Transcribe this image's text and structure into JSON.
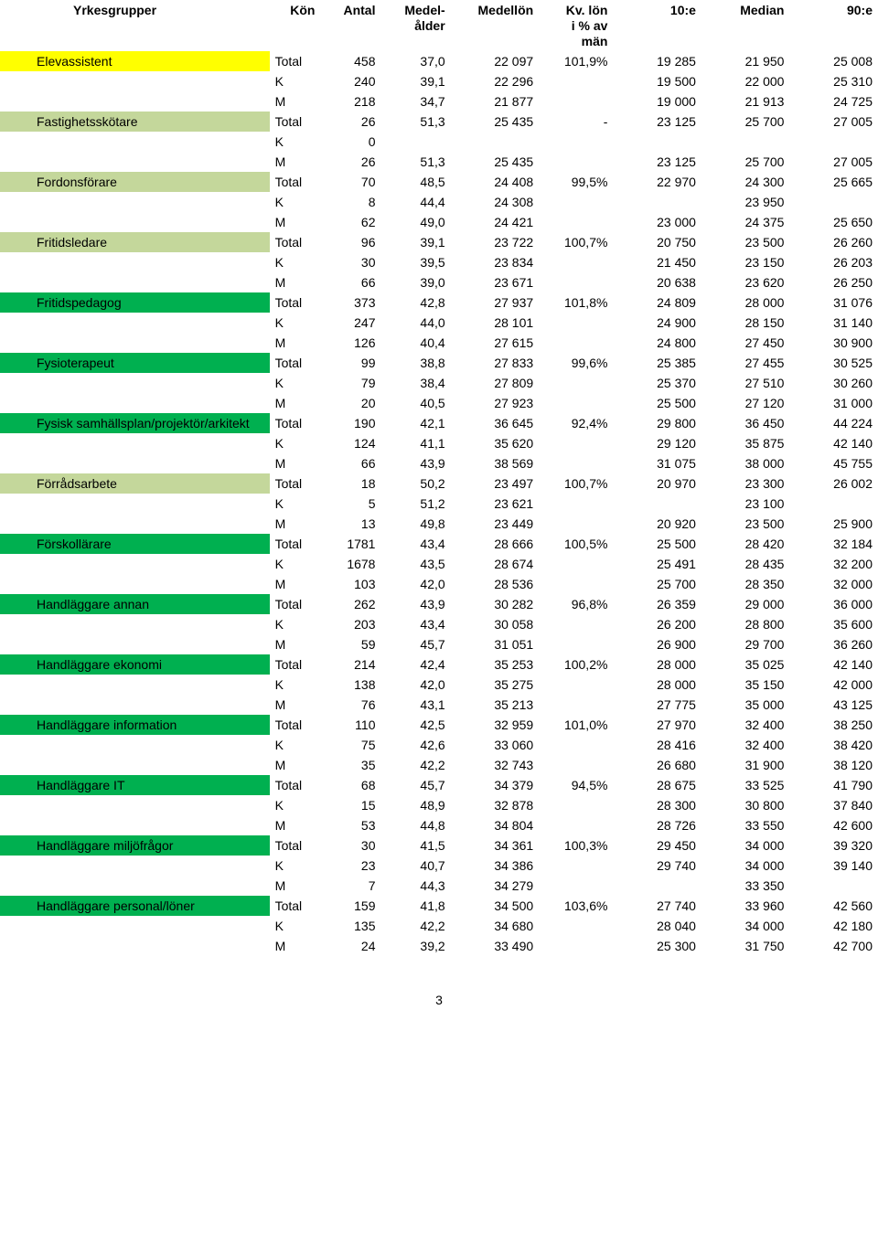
{
  "colors": {
    "yellow": "#ffff00",
    "olive": "#c4d79b",
    "green": "#00b050",
    "bg": "#ffffff",
    "text": "#000000"
  },
  "typography": {
    "body_fontsize": 14,
    "header_fontweight": "bold"
  },
  "page_number": "3",
  "headers": {
    "yrkesgrupper": "Yrkesgrupper",
    "kon": "Kön",
    "antal": "Antal",
    "medelalder": "Medel-\nålder",
    "medellon": "Medellön",
    "kvlon": "Kv. lön\ni % av\nmän",
    "p10": "10:e",
    "median": "Median",
    "p90": "90:e"
  },
  "groups": [
    {
      "name": "Elevassistent",
      "color": "yellow",
      "rows": [
        [
          "Total",
          "458",
          "37,0",
          "22 097",
          "101,9%",
          "19 285",
          "21 950",
          "25 008"
        ],
        [
          "K",
          "240",
          "39,1",
          "22 296",
          "",
          "19 500",
          "22 000",
          "25 310"
        ],
        [
          "M",
          "218",
          "34,7",
          "21 877",
          "",
          "19 000",
          "21 913",
          "24 725"
        ]
      ]
    },
    {
      "name": "Fastighetsskötare",
      "color": "olive",
      "rows": [
        [
          "Total",
          "26",
          "51,3",
          "25 435",
          "-",
          "23 125",
          "25 700",
          "27 005"
        ],
        [
          "K",
          "0",
          "",
          "",
          "",
          "",
          "",
          ""
        ],
        [
          "M",
          "26",
          "51,3",
          "25 435",
          "",
          "23 125",
          "25 700",
          "27 005"
        ]
      ]
    },
    {
      "name": "Fordonsförare",
      "color": "olive",
      "rows": [
        [
          "Total",
          "70",
          "48,5",
          "24 408",
          "99,5%",
          "22 970",
          "24 300",
          "25 665"
        ],
        [
          "K",
          "8",
          "44,4",
          "24 308",
          "",
          "",
          "23 950",
          ""
        ],
        [
          "M",
          "62",
          "49,0",
          "24 421",
          "",
          "23 000",
          "24 375",
          "25 650"
        ]
      ]
    },
    {
      "name": "Fritidsledare",
      "color": "olive",
      "rows": [
        [
          "Total",
          "96",
          "39,1",
          "23 722",
          "100,7%",
          "20 750",
          "23 500",
          "26 260"
        ],
        [
          "K",
          "30",
          "39,5",
          "23 834",
          "",
          "21 450",
          "23 150",
          "26 203"
        ],
        [
          "M",
          "66",
          "39,0",
          "23 671",
          "",
          "20 638",
          "23 620",
          "26 250"
        ]
      ]
    },
    {
      "name": "Fritidspedagog",
      "color": "green",
      "rows": [
        [
          "Total",
          "373",
          "42,8",
          "27 937",
          "101,8%",
          "24 809",
          "28 000",
          "31 076"
        ],
        [
          "K",
          "247",
          "44,0",
          "28 101",
          "",
          "24 900",
          "28 150",
          "31 140"
        ],
        [
          "M",
          "126",
          "40,4",
          "27 615",
          "",
          "24 800",
          "27 450",
          "30 900"
        ]
      ]
    },
    {
      "name": "Fysioterapeut",
      "color": "green",
      "rows": [
        [
          "Total",
          "99",
          "38,8",
          "27 833",
          "99,6%",
          "25 385",
          "27 455",
          "30 525"
        ],
        [
          "K",
          "79",
          "38,4",
          "27 809",
          "",
          "25 370",
          "27 510",
          "30 260"
        ],
        [
          "M",
          "20",
          "40,5",
          "27 923",
          "",
          "25 500",
          "27 120",
          "31 000"
        ]
      ]
    },
    {
      "name": "Fysisk samhällsplan/projektör/arkitekt",
      "color": "green",
      "rows": [
        [
          "Total",
          "190",
          "42,1",
          "36 645",
          "92,4%",
          "29 800",
          "36 450",
          "44 224"
        ],
        [
          "K",
          "124",
          "41,1",
          "35 620",
          "",
          "29 120",
          "35 875",
          "42 140"
        ],
        [
          "M",
          "66",
          "43,9",
          "38 569",
          "",
          "31 075",
          "38 000",
          "45 755"
        ]
      ]
    },
    {
      "name": "Förrådsarbete",
      "color": "olive",
      "rows": [
        [
          "Total",
          "18",
          "50,2",
          "23 497",
          "100,7%",
          "20 970",
          "23 300",
          "26 002"
        ],
        [
          "K",
          "5",
          "51,2",
          "23 621",
          "",
          "",
          "23 100",
          ""
        ],
        [
          "M",
          "13",
          "49,8",
          "23 449",
          "",
          "20 920",
          "23 500",
          "25 900"
        ]
      ]
    },
    {
      "name": "Förskollärare",
      "color": "green",
      "rows": [
        [
          "Total",
          "1781",
          "43,4",
          "28 666",
          "100,5%",
          "25 500",
          "28 420",
          "32 184"
        ],
        [
          "K",
          "1678",
          "43,5",
          "28 674",
          "",
          "25 491",
          "28 435",
          "32 200"
        ],
        [
          "M",
          "103",
          "42,0",
          "28 536",
          "",
          "25 700",
          "28 350",
          "32 000"
        ]
      ]
    },
    {
      "name": "Handläggare annan",
      "color": "green",
      "rows": [
        [
          "Total",
          "262",
          "43,9",
          "30 282",
          "96,8%",
          "26 359",
          "29 000",
          "36 000"
        ],
        [
          "K",
          "203",
          "43,4",
          "30 058",
          "",
          "26 200",
          "28 800",
          "35 600"
        ],
        [
          "M",
          "59",
          "45,7",
          "31 051",
          "",
          "26 900",
          "29 700",
          "36 260"
        ]
      ]
    },
    {
      "name": "Handläggare ekonomi",
      "color": "green",
      "rows": [
        [
          "Total",
          "214",
          "42,4",
          "35 253",
          "100,2%",
          "28 000",
          "35 025",
          "42 140"
        ],
        [
          "K",
          "138",
          "42,0",
          "35 275",
          "",
          "28 000",
          "35 150",
          "42 000"
        ],
        [
          "M",
          "76",
          "43,1",
          "35 213",
          "",
          "27 775",
          "35 000",
          "43 125"
        ]
      ]
    },
    {
      "name": "Handläggare information",
      "color": "green",
      "rows": [
        [
          "Total",
          "110",
          "42,5",
          "32 959",
          "101,0%",
          "27 970",
          "32 400",
          "38 250"
        ],
        [
          "K",
          "75",
          "42,6",
          "33 060",
          "",
          "28 416",
          "32 400",
          "38 420"
        ],
        [
          "M",
          "35",
          "42,2",
          "32 743",
          "",
          "26 680",
          "31 900",
          "38 120"
        ]
      ]
    },
    {
      "name": "Handläggare IT",
      "color": "green",
      "rows": [
        [
          "Total",
          "68",
          "45,7",
          "34 379",
          "94,5%",
          "28 675",
          "33 525",
          "41 790"
        ],
        [
          "K",
          "15",
          "48,9",
          "32 878",
          "",
          "28 300",
          "30 800",
          "37 840"
        ],
        [
          "M",
          "53",
          "44,8",
          "34 804",
          "",
          "28 726",
          "33 550",
          "42 600"
        ]
      ]
    },
    {
      "name": "Handläggare miljöfrågor",
      "color": "green",
      "rows": [
        [
          "Total",
          "30",
          "41,5",
          "34 361",
          "100,3%",
          "29 450",
          "34 000",
          "39 320"
        ],
        [
          "K",
          "23",
          "40,7",
          "34 386",
          "",
          "29 740",
          "34 000",
          "39 140"
        ],
        [
          "M",
          "7",
          "44,3",
          "34 279",
          "",
          "",
          "33 350",
          ""
        ]
      ]
    },
    {
      "name": "Handläggare personal/löner",
      "color": "green",
      "rows": [
        [
          "Total",
          "159",
          "41,8",
          "34 500",
          "103,6%",
          "27 740",
          "33 960",
          "42 560"
        ],
        [
          "K",
          "135",
          "42,2",
          "34 680",
          "",
          "28 040",
          "34 000",
          "42 180"
        ],
        [
          "M",
          "24",
          "39,2",
          "33 490",
          "",
          "25 300",
          "31 750",
          "42 700"
        ]
      ]
    }
  ]
}
